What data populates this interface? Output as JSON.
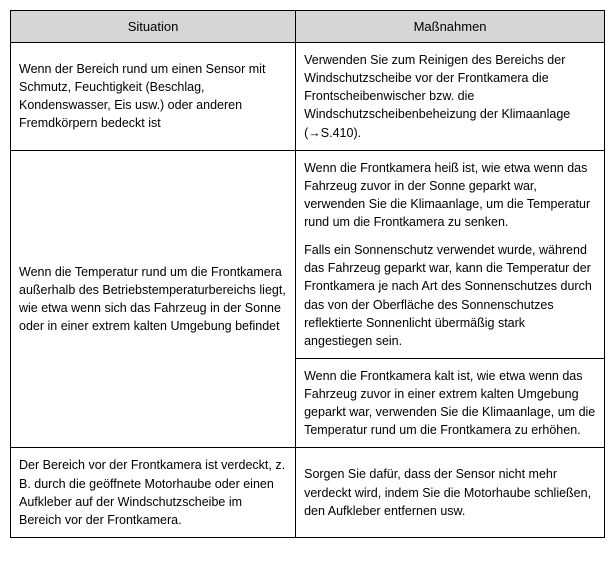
{
  "table": {
    "headers": {
      "situation": "Situation",
      "measures": "Maßnahmen"
    },
    "rows": {
      "r1": {
        "situation": "Wenn der Bereich rund um einen Sensor mit Schmutz, Feuchtigkeit (Beschlag, Kondenswasser, Eis usw.) oder anderen Fremdkörpern bedeckt ist",
        "measure_prefix": "Verwenden Sie zum Reinigen des Bereichs der Windschutzscheibe vor der Frontkamera die Frontscheibenwischer bzw. die Windschutzscheibenbeheizung der Klimaanlage (",
        "measure_arrow": "→",
        "measure_suffix": "S.410)."
      },
      "r2": {
        "situation": "Wenn die Temperatur rund um die Frontkamera außerhalb des Betriebstemperaturbereichs liegt, wie etwa wenn sich das Fahrzeug in der Sonne oder in einer extrem kalten Umgebung befindet",
        "measure_a_p1": "Wenn die Frontkamera heiß ist, wie etwa wenn das Fahrzeug zuvor in der Sonne geparkt war, verwenden Sie die Klimaanlage, um die Temperatur rund um die Frontkamera zu senken.",
        "measure_a_p2": "Falls ein Sonnenschutz verwendet wurde, während das Fahrzeug geparkt war, kann die Temperatur der Frontkamera je nach Art des Sonnenschutzes durch das von der Oberfläche des Sonnenschutzes reflektierte Sonnenlicht übermäßig stark angestiegen sein.",
        "measure_b": "Wenn die Frontkamera kalt ist, wie etwa wenn das Fahrzeug zuvor in einer extrem kalten Umgebung geparkt war, verwenden Sie die Klimaanlage, um die Temperatur rund um die Frontkamera zu erhöhen."
      },
      "r3": {
        "situation": "Der Bereich vor der Frontkamera ist verdeckt, z. B. durch die geöffnete Motorhaube oder einen Aufkleber auf der Windschutzscheibe im Bereich vor der Frontkamera.",
        "measure": "Sorgen Sie dafür, dass der Sensor nicht mehr verdeckt wird, indem Sie die Motorhaube schließen, den Aufkleber entfernen usw."
      }
    }
  }
}
